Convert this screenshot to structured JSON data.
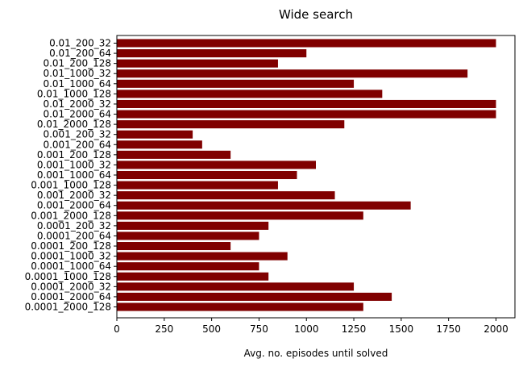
{
  "chart_data": {
    "type": "bar",
    "orientation": "horizontal",
    "title": "Wide search",
    "xlabel": "Avg. no. episodes until solved",
    "ylabel": "",
    "xlim": [
      0,
      2100
    ],
    "xticks": [
      0,
      250,
      500,
      750,
      1000,
      1250,
      1500,
      1750,
      2000
    ],
    "grid": false,
    "bar_color": "#800000",
    "categories": [
      "0.01_200_32",
      "0.01_200_64",
      "0.01_200_128",
      "0.01_1000_32",
      "0.01_1000_64",
      "0.01_1000_128",
      "0.01_2000_32",
      "0.01_2000_64",
      "0.01_2000_128",
      "0.001_200_32",
      "0.001_200_64",
      "0.001_200_128",
      "0.001_1000_32",
      "0.001_1000_64",
      "0.001_1000_128",
      "0.001_2000_32",
      "0.001_2000_64",
      "0.001_2000_128",
      "0.0001_200_32",
      "0.0001_200_64",
      "0.0001_200_128",
      "0.0001_1000_32",
      "0.0001_1000_64",
      "0.0001_1000_128",
      "0.0001_2000_32",
      "0.0001_2000_64",
      "0.0001_2000_128"
    ],
    "values": [
      2000,
      1000,
      850,
      1850,
      1250,
      1400,
      2000,
      2000,
      1200,
      400,
      450,
      600,
      1050,
      950,
      850,
      1150,
      1550,
      1300,
      800,
      750,
      600,
      900,
      750,
      800,
      1250,
      1450,
      1300
    ]
  }
}
